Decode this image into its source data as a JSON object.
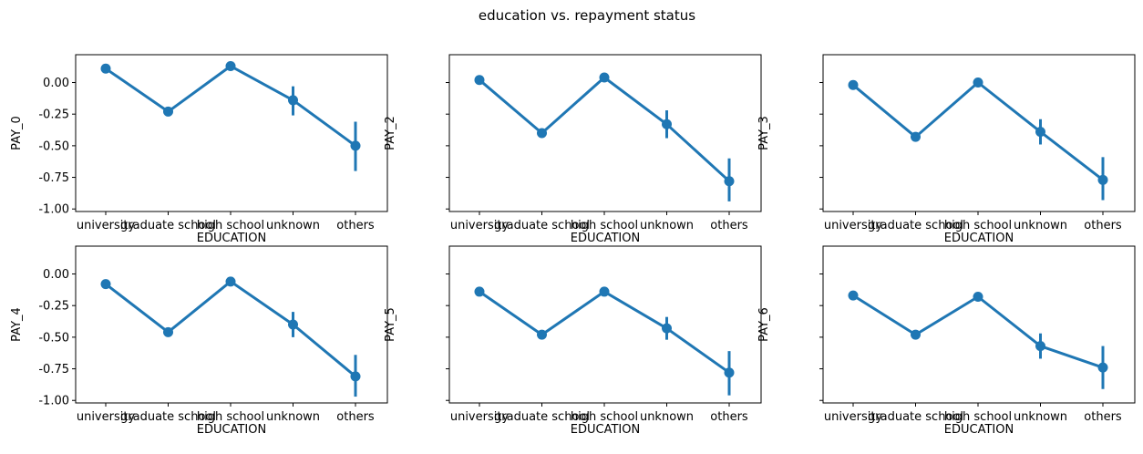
{
  "title": "education vs. repayment status",
  "chart_data": [
    {
      "type": "line",
      "title": "",
      "xlabel": "EDUCATION",
      "ylabel": "PAY_0",
      "categories": [
        "university",
        "graduate school",
        "high school",
        "unknown",
        "others"
      ],
      "values": [
        0.11,
        -0.23,
        0.13,
        -0.14,
        -0.5
      ],
      "ci_low": [
        0.1,
        -0.25,
        0.11,
        -0.26,
        -0.7
      ],
      "ci_high": [
        0.12,
        -0.21,
        0.15,
        -0.03,
        -0.31
      ],
      "ylim": [
        -1.02,
        0.22
      ],
      "yticks": [
        "0.00",
        "-0.25",
        "-0.50",
        "-0.75",
        "-1.00"
      ],
      "color": "#1f77b4"
    },
    {
      "type": "line",
      "title": "",
      "xlabel": "EDUCATION",
      "ylabel": "PAY_2",
      "categories": [
        "university",
        "graduate school",
        "high school",
        "unknown",
        "others"
      ],
      "values": [
        0.02,
        -0.4,
        0.04,
        -0.33,
        -0.78
      ],
      "ci_low": [
        0.01,
        -0.42,
        0.02,
        -0.44,
        -0.94
      ],
      "ci_high": [
        0.03,
        -0.38,
        0.06,
        -0.22,
        -0.6
      ],
      "ylim": [
        -1.02,
        0.22
      ],
      "yticks": [
        "",
        "",
        "",
        "",
        ""
      ],
      "color": "#1f77b4"
    },
    {
      "type": "line",
      "title": "",
      "xlabel": "EDUCATION",
      "ylabel": "PAY_3",
      "categories": [
        "university",
        "graduate school",
        "high school",
        "unknown",
        "others"
      ],
      "values": [
        -0.02,
        -0.43,
        0.0,
        -0.39,
        -0.77
      ],
      "ci_low": [
        -0.03,
        -0.45,
        -0.03,
        -0.49,
        -0.93
      ],
      "ci_high": [
        -0.01,
        -0.41,
        0.03,
        -0.29,
        -0.59
      ],
      "ylim": [
        -1.02,
        0.22
      ],
      "yticks": [
        "",
        "",
        "",
        "",
        ""
      ],
      "color": "#1f77b4"
    },
    {
      "type": "line",
      "title": "",
      "xlabel": "EDUCATION",
      "ylabel": "PAY_4",
      "categories": [
        "university",
        "graduate school",
        "high school",
        "unknown",
        "others"
      ],
      "values": [
        -0.08,
        -0.46,
        -0.06,
        -0.4,
        -0.81
      ],
      "ci_low": [
        -0.09,
        -0.48,
        -0.09,
        -0.5,
        -0.97
      ],
      "ci_high": [
        -0.07,
        -0.44,
        -0.03,
        -0.3,
        -0.64
      ],
      "ylim": [
        -1.02,
        0.22
      ],
      "yticks": [
        "0.00",
        "-0.25",
        "-0.50",
        "-0.75",
        "-1.00"
      ],
      "color": "#1f77b4"
    },
    {
      "type": "line",
      "title": "",
      "xlabel": "EDUCATION",
      "ylabel": "PAY_5",
      "categories": [
        "university",
        "graduate school",
        "high school",
        "unknown",
        "others"
      ],
      "values": [
        -0.14,
        -0.48,
        -0.14,
        -0.43,
        -0.78
      ],
      "ci_low": [
        -0.15,
        -0.5,
        -0.17,
        -0.52,
        -0.96
      ],
      "ci_high": [
        -0.13,
        -0.46,
        -0.11,
        -0.34,
        -0.61
      ],
      "ylim": [
        -1.02,
        0.22
      ],
      "yticks": [
        "",
        "",
        "",
        "",
        ""
      ],
      "color": "#1f77b4"
    },
    {
      "type": "line",
      "title": "",
      "xlabel": "EDUCATION",
      "ylabel": "PAY_6",
      "categories": [
        "university",
        "graduate school",
        "high school",
        "unknown",
        "others"
      ],
      "values": [
        -0.17,
        -0.48,
        -0.18,
        -0.57,
        -0.74
      ],
      "ci_low": [
        -0.18,
        -0.5,
        -0.21,
        -0.67,
        -0.91
      ],
      "ci_high": [
        -0.16,
        -0.46,
        -0.15,
        -0.47,
        -0.57
      ],
      "ylim": [
        -1.02,
        0.22
      ],
      "yticks": [
        "",
        "",
        "",
        "",
        ""
      ],
      "color": "#1f77b4"
    }
  ]
}
